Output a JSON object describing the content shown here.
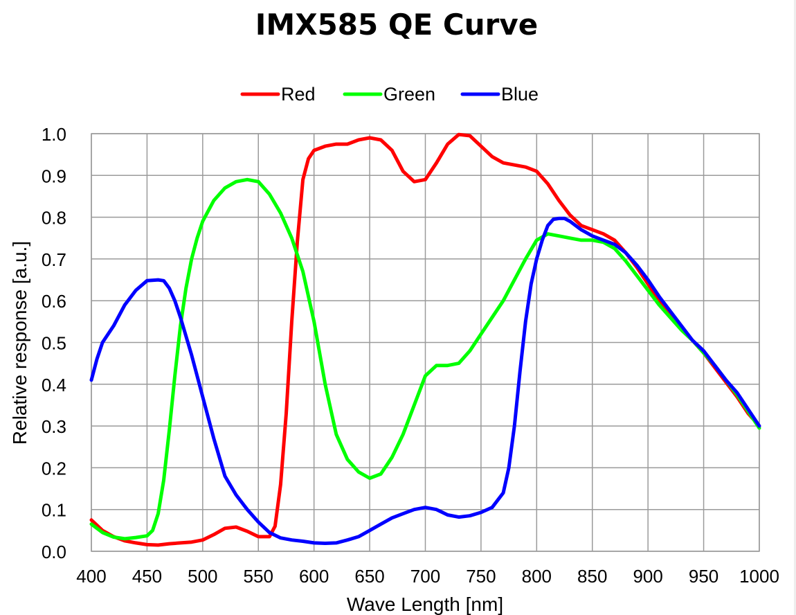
{
  "chart_data": {
    "type": "line",
    "title": "IMX585 QE Curve",
    "xlabel": "Wave Length [nm]",
    "ylabel": "Relative response [a.u.]",
    "xlim": [
      400,
      1000
    ],
    "ylim": [
      0,
      1.0
    ],
    "xticks": [
      "400",
      "450",
      "500",
      "550",
      "600",
      "650",
      "700",
      "750",
      "800",
      "850",
      "900",
      "950",
      "1000"
    ],
    "yticks": [
      "0.0",
      "0.1",
      "0.2",
      "0.3",
      "0.4",
      "0.5",
      "0.6",
      "0.7",
      "0.8",
      "0.9",
      "1.0"
    ],
    "grid": true,
    "legend_position": "top-center",
    "series": [
      {
        "name": "Red",
        "color": "#ff0000",
        "points": [
          [
            400,
            0.075
          ],
          [
            410,
            0.05
          ],
          [
            420,
            0.035
          ],
          [
            430,
            0.025
          ],
          [
            440,
            0.02
          ],
          [
            450,
            0.016
          ],
          [
            460,
            0.015
          ],
          [
            470,
            0.018
          ],
          [
            480,
            0.02
          ],
          [
            490,
            0.022
          ],
          [
            500,
            0.027
          ],
          [
            510,
            0.04
          ],
          [
            520,
            0.055
          ],
          [
            530,
            0.058
          ],
          [
            540,
            0.048
          ],
          [
            550,
            0.035
          ],
          [
            560,
            0.035
          ],
          [
            565,
            0.06
          ],
          [
            570,
            0.16
          ],
          [
            575,
            0.33
          ],
          [
            580,
            0.55
          ],
          [
            585,
            0.74
          ],
          [
            590,
            0.89
          ],
          [
            595,
            0.94
          ],
          [
            600,
            0.96
          ],
          [
            610,
            0.97
          ],
          [
            620,
            0.975
          ],
          [
            630,
            0.975
          ],
          [
            640,
            0.985
          ],
          [
            650,
            0.99
          ],
          [
            660,
            0.985
          ],
          [
            670,
            0.96
          ],
          [
            680,
            0.91
          ],
          [
            690,
            0.885
          ],
          [
            700,
            0.89
          ],
          [
            710,
            0.93
          ],
          [
            720,
            0.975
          ],
          [
            730,
            0.998
          ],
          [
            740,
            0.995
          ],
          [
            750,
            0.97
          ],
          [
            760,
            0.945
          ],
          [
            770,
            0.93
          ],
          [
            780,
            0.925
          ],
          [
            790,
            0.92
          ],
          [
            800,
            0.91
          ],
          [
            810,
            0.88
          ],
          [
            820,
            0.84
          ],
          [
            830,
            0.805
          ],
          [
            840,
            0.78
          ],
          [
            850,
            0.77
          ],
          [
            860,
            0.76
          ],
          [
            870,
            0.745
          ],
          [
            880,
            0.715
          ],
          [
            890,
            0.68
          ],
          [
            900,
            0.64
          ],
          [
            910,
            0.6
          ],
          [
            920,
            0.565
          ],
          [
            930,
            0.535
          ],
          [
            940,
            0.505
          ],
          [
            950,
            0.475
          ],
          [
            960,
            0.44
          ],
          [
            970,
            0.405
          ],
          [
            980,
            0.37
          ],
          [
            990,
            0.33
          ],
          [
            1000,
            0.3
          ]
        ]
      },
      {
        "name": "Green",
        "color": "#00ff00",
        "points": [
          [
            400,
            0.065
          ],
          [
            410,
            0.045
          ],
          [
            420,
            0.034
          ],
          [
            430,
            0.03
          ],
          [
            440,
            0.033
          ],
          [
            450,
            0.037
          ],
          [
            455,
            0.05
          ],
          [
            460,
            0.09
          ],
          [
            465,
            0.17
          ],
          [
            470,
            0.29
          ],
          [
            475,
            0.42
          ],
          [
            480,
            0.54
          ],
          [
            485,
            0.63
          ],
          [
            490,
            0.7
          ],
          [
            495,
            0.75
          ],
          [
            500,
            0.79
          ],
          [
            510,
            0.84
          ],
          [
            520,
            0.87
          ],
          [
            530,
            0.885
          ],
          [
            540,
            0.89
          ],
          [
            550,
            0.885
          ],
          [
            560,
            0.855
          ],
          [
            570,
            0.81
          ],
          [
            580,
            0.75
          ],
          [
            590,
            0.67
          ],
          [
            600,
            0.55
          ],
          [
            610,
            0.4
          ],
          [
            620,
            0.28
          ],
          [
            630,
            0.22
          ],
          [
            640,
            0.19
          ],
          [
            650,
            0.175
          ],
          [
            660,
            0.185
          ],
          [
            670,
            0.225
          ],
          [
            680,
            0.28
          ],
          [
            690,
            0.35
          ],
          [
            700,
            0.42
          ],
          [
            710,
            0.445
          ],
          [
            720,
            0.445
          ],
          [
            730,
            0.45
          ],
          [
            740,
            0.48
          ],
          [
            750,
            0.52
          ],
          [
            760,
            0.56
          ],
          [
            770,
            0.6
          ],
          [
            780,
            0.65
          ],
          [
            790,
            0.7
          ],
          [
            800,
            0.745
          ],
          [
            810,
            0.76
          ],
          [
            820,
            0.755
          ],
          [
            830,
            0.75
          ],
          [
            840,
            0.745
          ],
          [
            850,
            0.745
          ],
          [
            860,
            0.74
          ],
          [
            870,
            0.725
          ],
          [
            880,
            0.695
          ],
          [
            890,
            0.66
          ],
          [
            900,
            0.625
          ],
          [
            910,
            0.59
          ],
          [
            920,
            0.56
          ],
          [
            930,
            0.53
          ],
          [
            940,
            0.505
          ],
          [
            950,
            0.475
          ],
          [
            960,
            0.445
          ],
          [
            970,
            0.41
          ],
          [
            980,
            0.375
          ],
          [
            990,
            0.335
          ],
          [
            1000,
            0.295
          ]
        ]
      },
      {
        "name": "Blue",
        "color": "#0000ff",
        "points": [
          [
            400,
            0.41
          ],
          [
            405,
            0.46
          ],
          [
            410,
            0.5
          ],
          [
            420,
            0.54
          ],
          [
            430,
            0.59
          ],
          [
            440,
            0.625
          ],
          [
            450,
            0.648
          ],
          [
            460,
            0.65
          ],
          [
            465,
            0.648
          ],
          [
            470,
            0.63
          ],
          [
            475,
            0.6
          ],
          [
            480,
            0.56
          ],
          [
            490,
            0.47
          ],
          [
            500,
            0.37
          ],
          [
            510,
            0.27
          ],
          [
            520,
            0.18
          ],
          [
            530,
            0.135
          ],
          [
            540,
            0.1
          ],
          [
            550,
            0.07
          ],
          [
            560,
            0.045
          ],
          [
            570,
            0.032
          ],
          [
            580,
            0.027
          ],
          [
            590,
            0.024
          ],
          [
            600,
            0.02
          ],
          [
            610,
            0.019
          ],
          [
            620,
            0.02
          ],
          [
            630,
            0.027
          ],
          [
            640,
            0.035
          ],
          [
            650,
            0.05
          ],
          [
            660,
            0.065
          ],
          [
            670,
            0.08
          ],
          [
            680,
            0.09
          ],
          [
            690,
            0.1
          ],
          [
            700,
            0.105
          ],
          [
            710,
            0.1
          ],
          [
            720,
            0.087
          ],
          [
            730,
            0.082
          ],
          [
            740,
            0.085
          ],
          [
            750,
            0.093
          ],
          [
            760,
            0.105
          ],
          [
            770,
            0.14
          ],
          [
            775,
            0.2
          ],
          [
            780,
            0.3
          ],
          [
            785,
            0.43
          ],
          [
            790,
            0.55
          ],
          [
            795,
            0.64
          ],
          [
            800,
            0.7
          ],
          [
            805,
            0.745
          ],
          [
            810,
            0.78
          ],
          [
            815,
            0.795
          ],
          [
            820,
            0.797
          ],
          [
            825,
            0.797
          ],
          [
            830,
            0.79
          ],
          [
            840,
            0.77
          ],
          [
            850,
            0.755
          ],
          [
            860,
            0.745
          ],
          [
            870,
            0.735
          ],
          [
            880,
            0.715
          ],
          [
            890,
            0.685
          ],
          [
            900,
            0.65
          ],
          [
            910,
            0.61
          ],
          [
            920,
            0.575
          ],
          [
            930,
            0.54
          ],
          [
            940,
            0.505
          ],
          [
            950,
            0.48
          ],
          [
            960,
            0.445
          ],
          [
            970,
            0.41
          ],
          [
            980,
            0.38
          ],
          [
            990,
            0.34
          ],
          [
            1000,
            0.3
          ]
        ]
      }
    ]
  }
}
